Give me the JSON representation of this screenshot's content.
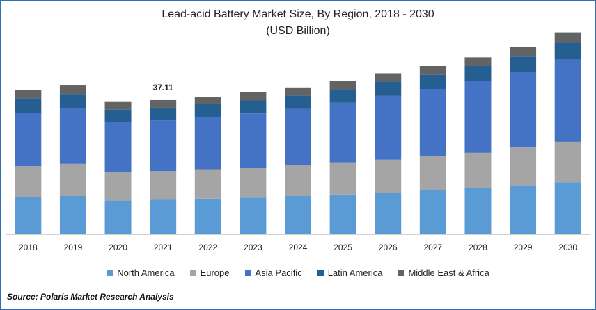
{
  "chart_data": {
    "type": "bar",
    "stacked": true,
    "title": "Lead-acid Battery Market Size, By Region, 2018 - 2030",
    "subtitle": "(USD Billion)",
    "categories": [
      "2018",
      "2019",
      "2020",
      "2021",
      "2022",
      "2023",
      "2024",
      "2025",
      "2026",
      "2027",
      "2028",
      "2029",
      "2030"
    ],
    "series": [
      {
        "name": "North America",
        "color": "#5b9bd5",
        "values": [
          9.8,
          10.0,
          8.8,
          9.0,
          9.3,
          9.6,
          10.0,
          10.4,
          10.9,
          11.5,
          12.1,
          12.8,
          13.6
        ]
      },
      {
        "name": "Europe",
        "color": "#a5a5a5",
        "values": [
          8.0,
          8.4,
          7.5,
          7.5,
          7.7,
          7.8,
          8.0,
          8.4,
          8.6,
          8.9,
          9.2,
          9.9,
          10.6
        ]
      },
      {
        "name": "Asia Pacific",
        "color": "#4472c4",
        "values": [
          14.0,
          14.5,
          13.0,
          13.3,
          13.6,
          14.2,
          14.8,
          15.6,
          16.7,
          17.6,
          18.7,
          19.7,
          21.5
        ]
      },
      {
        "name": "Latin America",
        "color": "#255e91",
        "values": [
          3.8,
          3.8,
          3.3,
          3.3,
          3.4,
          3.4,
          3.5,
          3.5,
          3.7,
          3.7,
          4.0,
          4.1,
          4.4
        ]
      },
      {
        "name": "Middle East & Africa",
        "color": "#636363",
        "values": [
          2.2,
          2.2,
          2.0,
          2.0,
          2.0,
          2.1,
          2.1,
          2.2,
          2.2,
          2.3,
          2.3,
          2.5,
          2.7
        ]
      }
    ],
    "data_labels": [
      {
        "category": "2021",
        "text": "37.11"
      }
    ],
    "ylim": [
      0,
      54
    ],
    "xlabel": "",
    "ylabel": "",
    "grid": false,
    "legend": "bottom"
  },
  "source": "Source: Polaris  Market Research Analysis"
}
